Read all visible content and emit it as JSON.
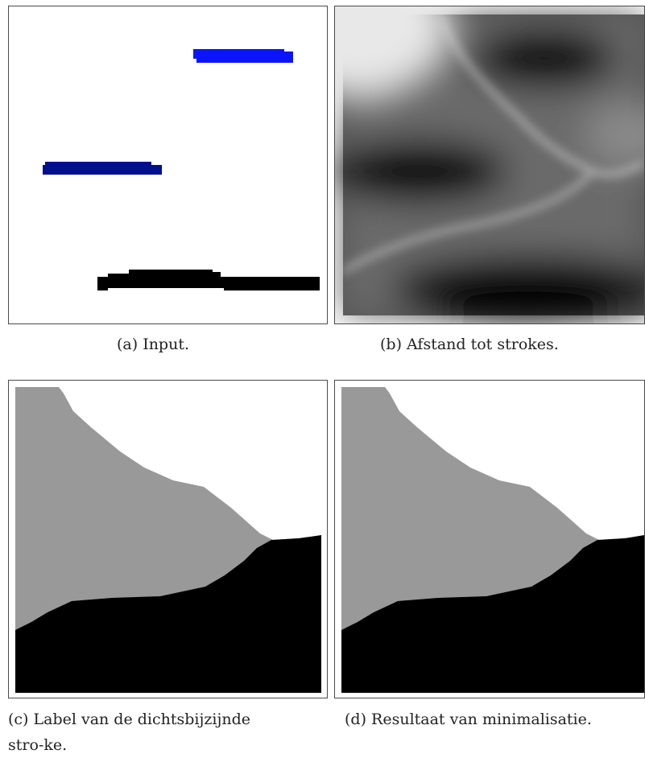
{
  "figure": {
    "panels": [
      {
        "caption": "(a) Input."
      },
      {
        "caption": "(b) Afstand tot strokes."
      },
      {
        "caption": "(c) Label van de dichtsbijzijnde stro-ke."
      },
      {
        "caption": "(d) Resultaat van minimalisatie."
      }
    ]
  },
  "colors": {
    "stroke_blue": "#0a14ff",
    "stroke_navy": "#000f8c",
    "stroke_black": "#000000",
    "label_gray": "#999999",
    "label_white": "#ffffff",
    "frame": "#4a4a4a"
  }
}
